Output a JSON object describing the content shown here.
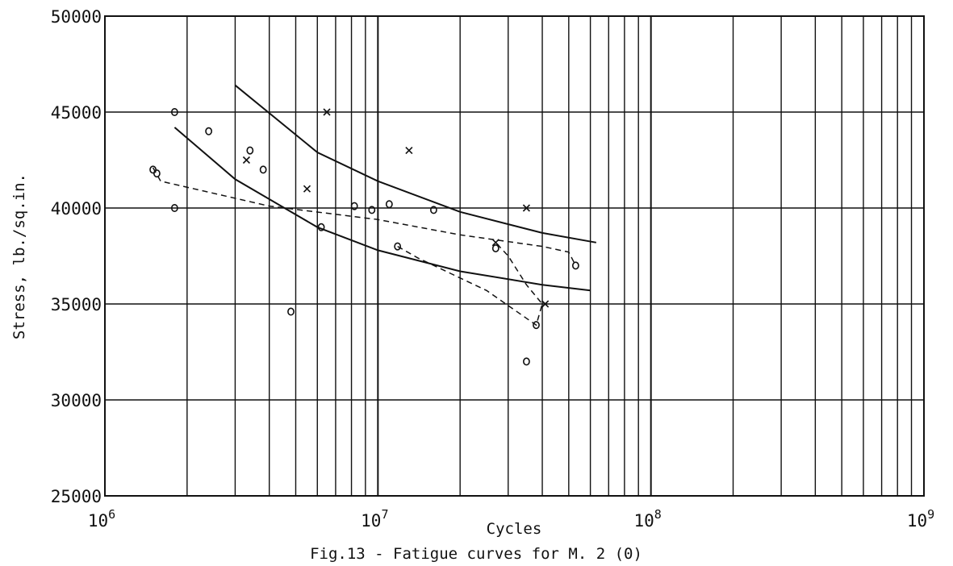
{
  "chart_data": {
    "type": "scatter",
    "xlabel": "Cycles",
    "ylabel": "Stress, lb./sq.in.",
    "x_scale": "log",
    "xlim": [
      1000000,
      1000000000
    ],
    "ylim": [
      25000,
      50000
    ],
    "grid": true,
    "x_ticks": [
      {
        "value": 1000000,
        "base": "10",
        "exp": "6"
      },
      {
        "value": 10000000,
        "base": "10",
        "exp": "7"
      },
      {
        "value": 100000000,
        "base": "10",
        "exp": "8"
      },
      {
        "value": 1000000000,
        "base": "10",
        "exp": "9"
      }
    ],
    "y_ticks": [
      25000,
      30000,
      35000,
      40000,
      45000,
      50000
    ],
    "y_tick_labels": [
      "25000",
      "30000",
      "35000",
      "40000",
      "45000",
      "50000"
    ],
    "caption": "Fig.13 - Fatigue curves for M. 2 (0)",
    "series": [
      {
        "marker": "circle",
        "points": [
          [
            1800000,
            45000
          ],
          [
            1800000,
            40000
          ],
          [
            1500000,
            42000
          ],
          [
            1550000,
            41800
          ],
          [
            2400000,
            44000
          ],
          [
            3400000,
            43000
          ],
          [
            3800000,
            42000
          ],
          [
            4800000,
            34600
          ],
          [
            6200000,
            39000
          ],
          [
            8200000,
            40100
          ],
          [
            9500000,
            39900
          ],
          [
            11000000,
            40200
          ],
          [
            11800000,
            38000
          ],
          [
            16000000,
            39900
          ],
          [
            27000000,
            37900
          ],
          [
            35000000,
            32000
          ],
          [
            38000000,
            33900
          ],
          [
            53000000,
            37000
          ]
        ]
      },
      {
        "marker": "cross",
        "points": [
          [
            3300000,
            42500
          ],
          [
            5500000,
            41000
          ],
          [
            6500000,
            45000
          ],
          [
            13000000,
            43000
          ],
          [
            27000000,
            38200
          ],
          [
            35000000,
            40000
          ],
          [
            41000000,
            35000
          ]
        ]
      }
    ],
    "curves": [
      {
        "style": "solid",
        "points": [
          [
            3000000,
            46400
          ],
          [
            6000000,
            42900
          ],
          [
            10000000,
            41400
          ],
          [
            20000000,
            39800
          ],
          [
            40000000,
            38700
          ],
          [
            63000000,
            38200
          ]
        ]
      },
      {
        "style": "solid",
        "points": [
          [
            1800000,
            44200
          ],
          [
            3000000,
            41500
          ],
          [
            6000000,
            39000
          ],
          [
            10000000,
            37800
          ],
          [
            20000000,
            36700
          ],
          [
            40000000,
            36000
          ],
          [
            60000000,
            35700
          ]
        ]
      },
      {
        "style": "dashed",
        "points": [
          [
            1500000,
            42100
          ],
          [
            1600000,
            41400
          ],
          [
            4000000,
            40100
          ],
          [
            10000000,
            39400
          ],
          [
            20000000,
            38600
          ],
          [
            40000000,
            38000
          ],
          [
            50000000,
            37700
          ],
          [
            53000000,
            37000
          ]
        ]
      },
      {
        "style": "dashed",
        "points": [
          [
            11800000,
            38000
          ],
          [
            14000000,
            37400
          ],
          [
            25000000,
            35700
          ],
          [
            38000000,
            33900
          ],
          [
            40000000,
            35000
          ],
          [
            35000000,
            36000
          ],
          [
            30000000,
            37500
          ],
          [
            27000000,
            38200
          ]
        ]
      }
    ]
  }
}
